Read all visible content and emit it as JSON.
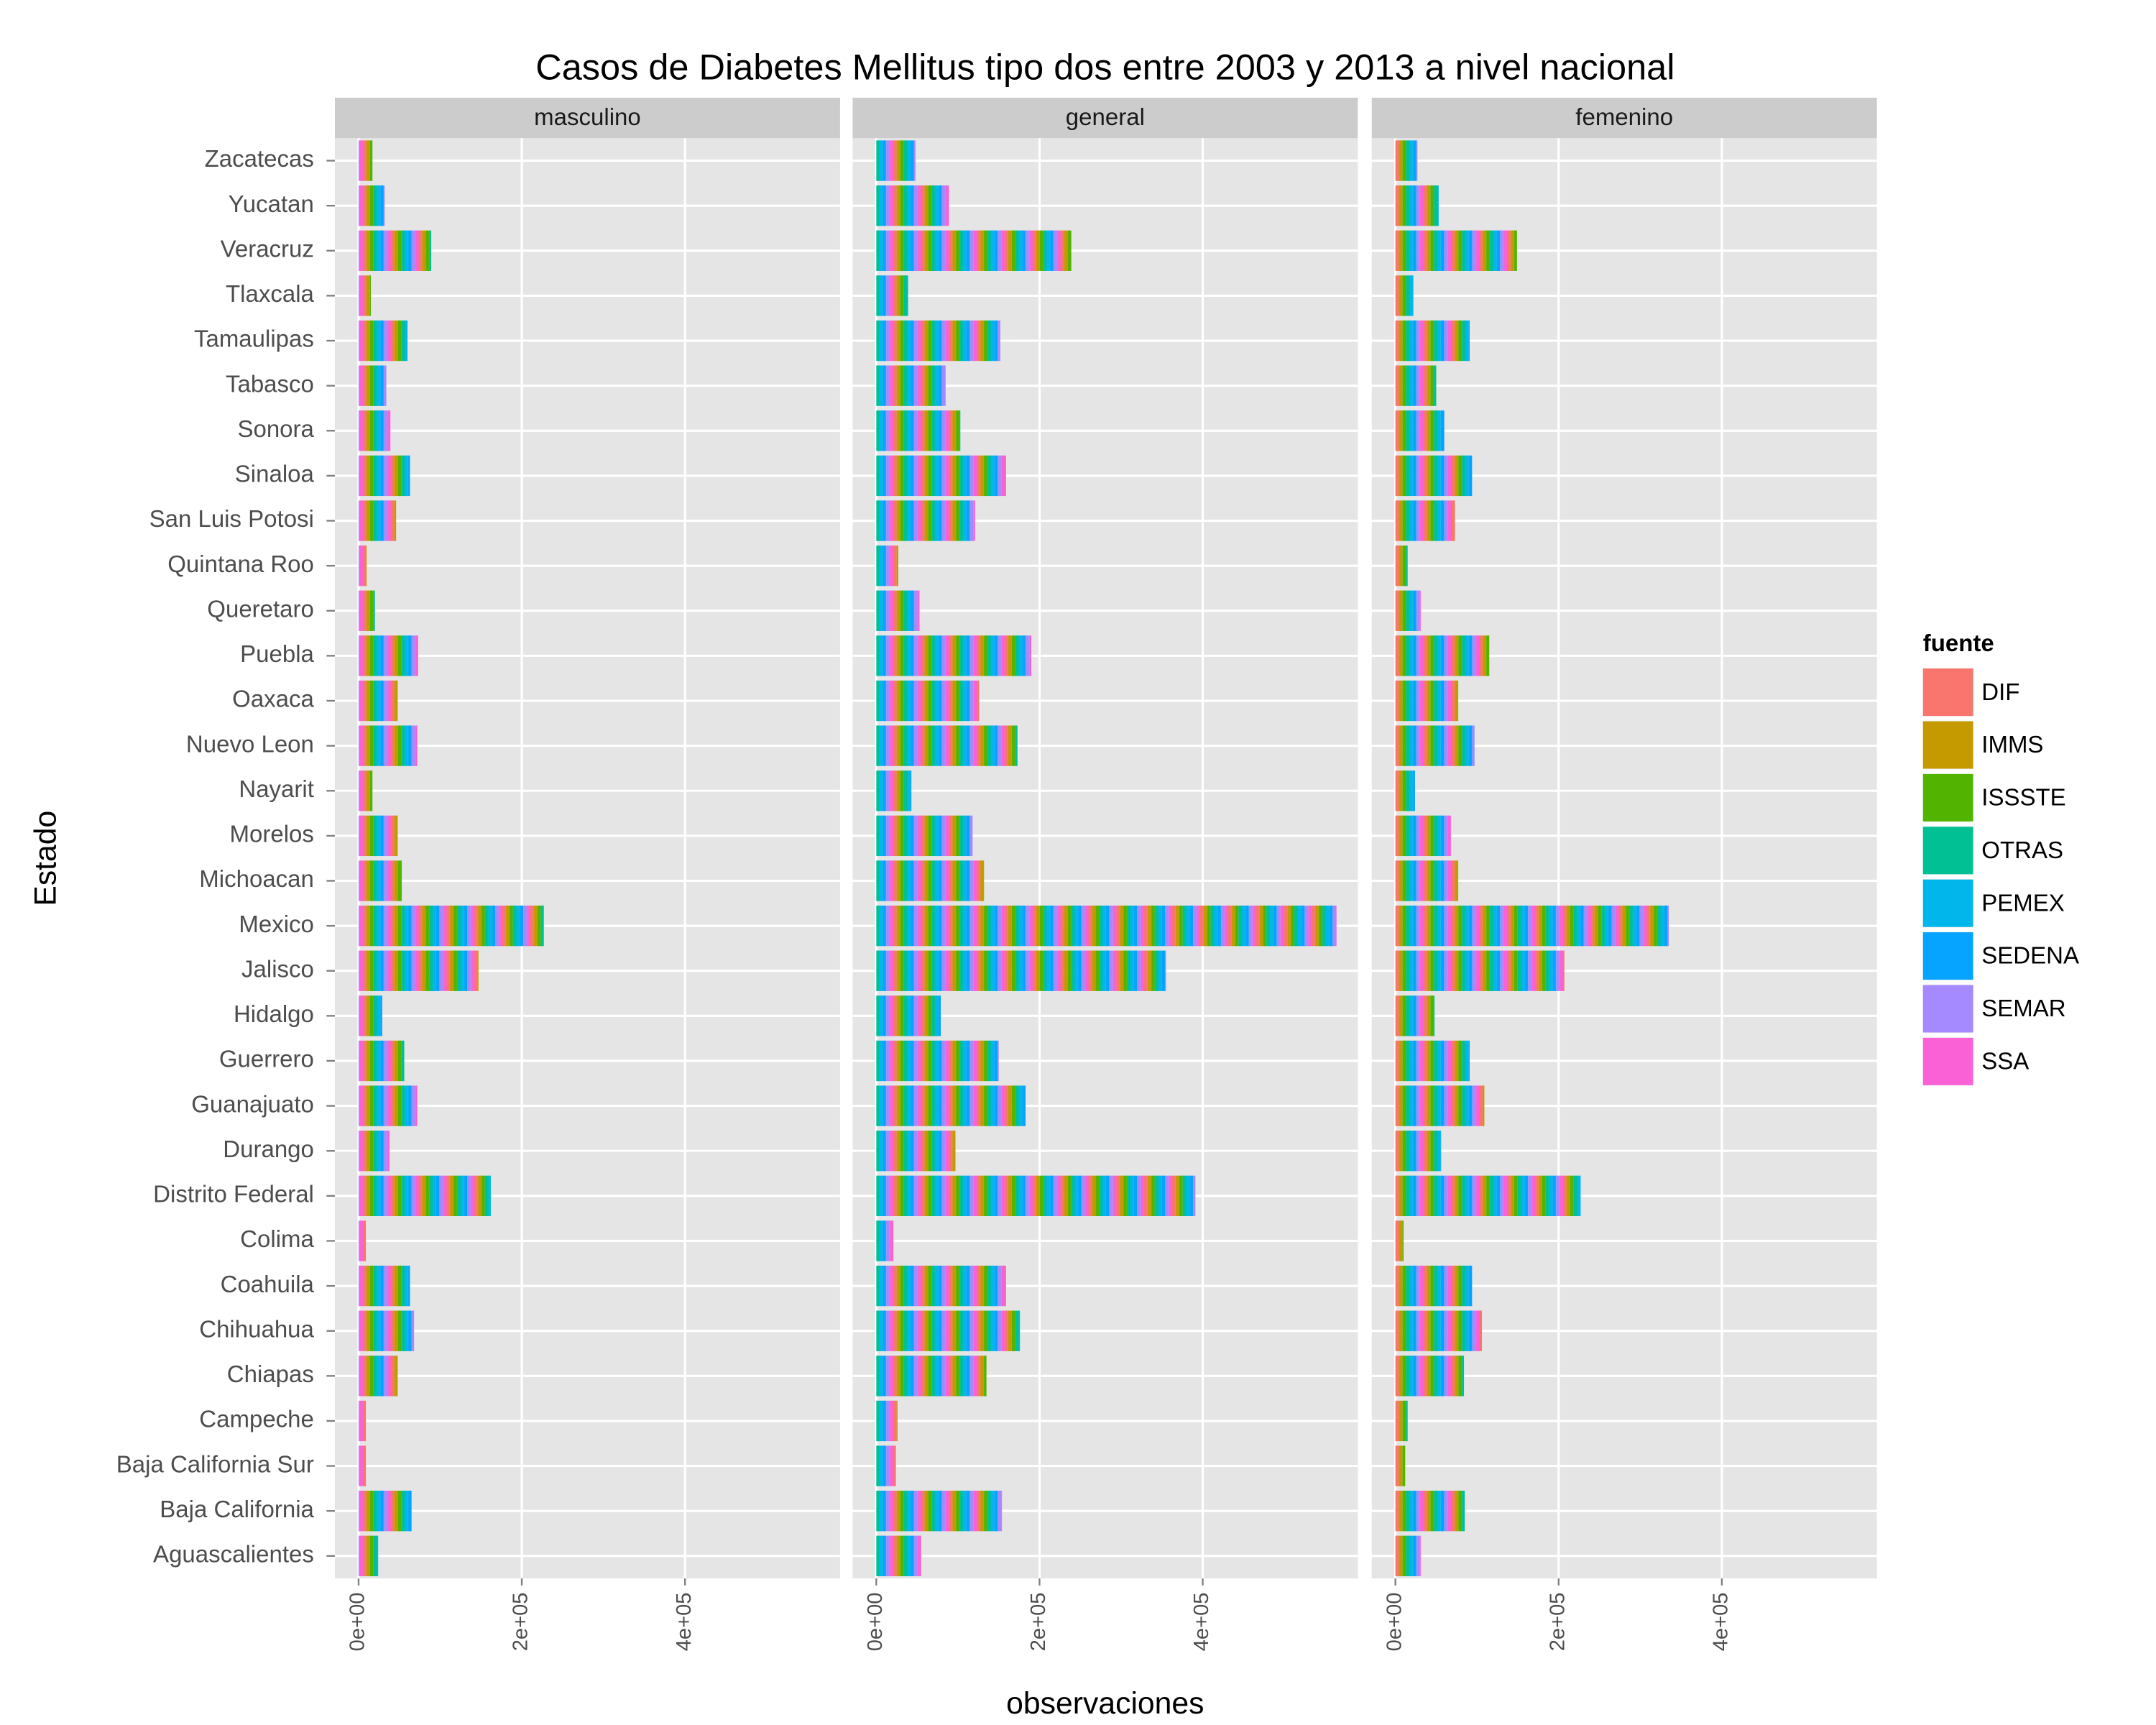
{
  "chart_data": {
    "type": "bar",
    "title": "Casos de Diabetes Mellitus tipo dos entre 2003 y 2013 a nivel nacional",
    "xlabel": "observaciones",
    "ylabel": "Estado",
    "categories": [
      "Zacatecas",
      "Yucatan",
      "Veracruz",
      "Tlaxcala",
      "Tamaulipas",
      "Tabasco",
      "Sonora",
      "Sinaloa",
      "San Luis Potosi",
      "Quintana Roo",
      "Queretaro",
      "Puebla",
      "Oaxaca",
      "Nuevo Leon",
      "Nayarit",
      "Morelos",
      "Michoacan",
      "Mexico",
      "Jalisco",
      "Hidalgo",
      "Guerrero",
      "Guanajuato",
      "Durango",
      "Distrito Federal",
      "Colima",
      "Coahuila",
      "Chihuahua",
      "Chiapas",
      "Campeche",
      "Baja California Sur",
      "Baja California",
      "Aguascalientes"
    ],
    "facets": [
      {
        "name": "masculino",
        "values": [
          17000,
          32000,
          89000,
          15000,
          60000,
          34000,
          39000,
          63000,
          46000,
          10000,
          20000,
          73000,
          48000,
          72000,
          17000,
          48000,
          53000,
          227000,
          147000,
          29000,
          56000,
          72000,
          38000,
          162000,
          9000,
          63000,
          68000,
          48000,
          9000,
          9000,
          65000,
          24000
        ]
      },
      {
        "name": "general",
        "values": [
          48000,
          89000,
          239000,
          39000,
          152000,
          85000,
          103000,
          159000,
          121000,
          27000,
          53000,
          190000,
          126000,
          173000,
          43000,
          118000,
          132000,
          564000,
          355000,
          79000,
          150000,
          183000,
          97000,
          391000,
          21000,
          159000,
          176000,
          135000,
          26000,
          24000,
          154000,
          55000
        ]
      },
      {
        "name": "femenino",
        "values": [
          27000,
          53000,
          149000,
          22000,
          91000,
          50000,
          60000,
          94000,
          73000,
          15000,
          31000,
          115000,
          77000,
          97000,
          24000,
          68000,
          77000,
          335000,
          207000,
          48000,
          91000,
          109000,
          56000,
          227000,
          10000,
          94000,
          106000,
          84000,
          15000,
          12000,
          85000,
          31000
        ]
      }
    ],
    "xlim": [
      -29000,
      590000
    ],
    "xticks": [
      {
        "value": 0,
        "label": "0e+00"
      },
      {
        "value": 200000,
        "label": "2e+05"
      },
      {
        "value": 400000,
        "label": "4e+05"
      }
    ],
    "grid": true,
    "legend": {
      "position": "right",
      "title": "fuente",
      "items": [
        {
          "name": "DIF",
          "color": "#F8766D"
        },
        {
          "name": "IMMS",
          "color": "#C49A00"
        },
        {
          "name": "ISSSTE",
          "color": "#53B400"
        },
        {
          "name": "OTRAS",
          "color": "#00C094"
        },
        {
          "name": "PEMEX",
          "color": "#00B6EB"
        },
        {
          "name": "SEDENA",
          "color": "#06A4FF"
        },
        {
          "name": "SEMAR",
          "color": "#A58AFF"
        },
        {
          "name": "SSA",
          "color": "#FB61D7"
        }
      ]
    }
  }
}
